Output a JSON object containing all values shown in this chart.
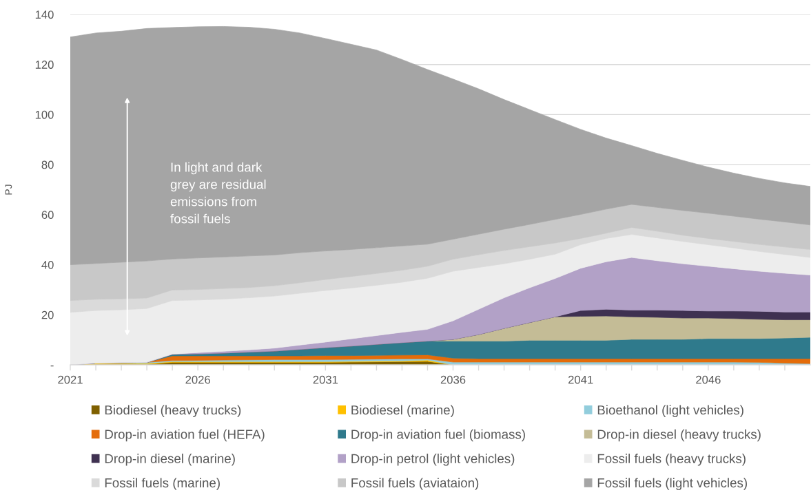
{
  "chart_data": {
    "type": "area",
    "stacked": true,
    "ylabel": "PJ",
    "x": [
      2021,
      2022,
      2023,
      2024,
      2025,
      2026,
      2027,
      2028,
      2029,
      2030,
      2031,
      2032,
      2033,
      2034,
      2035,
      2036,
      2037,
      2038,
      2039,
      2040,
      2041,
      2042,
      2043,
      2044,
      2045,
      2046,
      2047,
      2048,
      2049,
      2050
    ],
    "xlim": [
      2021,
      2050
    ],
    "xticks": [
      2021,
      {
        "value": 2022,
        "label": null
      },
      {
        "value": 2023,
        "label": null
      },
      {
        "value": 2024,
        "label": null
      },
      {
        "value": 2025,
        "label": null
      },
      2026,
      {
        "value": 2027,
        "label": null
      },
      {
        "value": 2028,
        "label": null
      },
      {
        "value": 2029,
        "label": null
      },
      {
        "value": 2030,
        "label": null
      },
      2031,
      {
        "value": 2032,
        "label": null
      },
      {
        "value": 2033,
        "label": null
      },
      {
        "value": 2034,
        "label": null
      },
      {
        "value": 2035,
        "label": null
      },
      2036,
      {
        "value": 2037,
        "label": null
      },
      {
        "value": 2038,
        "label": null
      },
      {
        "value": 2039,
        "label": null
      },
      {
        "value": 2040,
        "label": null
      },
      2041,
      {
        "value": 2042,
        "label": null
      },
      {
        "value": 2043,
        "label": null
      },
      {
        "value": 2044,
        "label": null
      },
      {
        "value": 2045,
        "label": null
      },
      2046,
      {
        "value": 2047,
        "label": null
      },
      {
        "value": 2048,
        "label": null
      },
      {
        "value": 2049,
        "label": null
      }
    ],
    "ylim": [
      0,
      140
    ],
    "yticks": [
      {
        "value": 0,
        "label": "-"
      },
      20,
      40,
      60,
      80,
      100,
      120,
      140
    ],
    "grid": "y",
    "legend": "bottom",
    "annotations": [
      "In light and dark\ngrey are residual\nemissions from\nfossil fuels"
    ],
    "series": [
      {
        "name": "Biodiesel (heavy trucks)",
        "color": "#7f6000",
        "values": [
          0,
          0.2,
          0.2,
          0.2,
          1.0,
          1.0,
          1.0,
          1.0,
          1.0,
          1.0,
          1.0,
          1.1,
          1.2,
          1.3,
          1.4,
          0,
          0,
          0,
          0,
          0,
          0,
          0,
          0,
          0,
          0,
          0,
          0,
          0,
          0,
          0
        ]
      },
      {
        "name": "Biodiesel (marine)",
        "color": "#ffc000",
        "values": [
          0,
          0.4,
          0.4,
          0.4,
          0.3,
          0.3,
          0.3,
          0.3,
          0.3,
          0.3,
          0.3,
          0.3,
          0.3,
          0.3,
          0.5,
          0,
          0,
          0,
          0,
          0,
          0,
          0,
          0,
          0,
          0,
          0,
          0,
          0,
          0,
          0
        ]
      },
      {
        "name": "Bioethanol (light vehicles)",
        "color": "#92cddc",
        "values": [
          0,
          0.1,
          0.3,
          0.4,
          0.4,
          0.5,
          0.6,
          0.7,
          0.8,
          0.8,
          0.8,
          0.8,
          0.8,
          0.8,
          0.5,
          1.1,
          1.1,
          1.1,
          1.1,
          1.1,
          1.1,
          1.1,
          1.1,
          1.1,
          1.1,
          1.1,
          1.1,
          1.0,
          0.7,
          0.5
        ]
      },
      {
        "name": "Drop-in aviation fuel (HEFA)",
        "color": "#e46c0a",
        "values": [
          0,
          0,
          0,
          0,
          1.9,
          1.8,
          1.7,
          1.6,
          1.5,
          1.5,
          1.6,
          1.5,
          1.5,
          1.5,
          1.6,
          1.6,
          1.4,
          1.4,
          1.4,
          1.4,
          1.4,
          1.4,
          1.4,
          1.4,
          1.4,
          1.4,
          1.4,
          1.5,
          1.8,
          2.0
        ]
      },
      {
        "name": "Drop-in aviation fuel (biomass)",
        "color": "#2f7a8c",
        "values": [
          0,
          0,
          0,
          0,
          0.6,
          0.8,
          1.1,
          1.5,
          1.9,
          2.6,
          3.2,
          3.8,
          4.4,
          5.0,
          5.5,
          6.8,
          7.0,
          7.0,
          7.3,
          7.3,
          7.3,
          7.3,
          7.7,
          7.7,
          7.7,
          8.0,
          8.0,
          8.0,
          8.2,
          8.5
        ]
      },
      {
        "name": "Drop-in diesel (heavy trucks)",
        "color": "#c4bc96",
        "values": [
          0,
          0,
          0,
          0,
          0,
          0,
          0,
          0,
          0,
          0,
          0,
          0,
          0,
          0,
          0,
          0.7,
          2.6,
          5.1,
          7.1,
          9.4,
          9.6,
          9.7,
          9.0,
          8.8,
          8.5,
          8.2,
          8.0,
          7.7,
          7.3,
          7.0
        ]
      },
      {
        "name": "Drop-in diesel (marine)",
        "color": "#3f3151",
        "values": [
          0,
          0,
          0,
          0,
          0,
          0,
          0,
          0,
          0,
          0,
          0,
          0,
          0,
          0,
          0,
          0,
          0,
          0,
          0,
          0,
          2.3,
          2.7,
          2.7,
          2.9,
          3.0,
          2.8,
          3.0,
          3.2,
          3.1,
          3.1
        ]
      },
      {
        "name": "Drop-in petrol (light vehicles)",
        "color": "#b2a1c7",
        "values": [
          0,
          0,
          0,
          0,
          0.1,
          0.5,
          0.7,
          0.9,
          1.2,
          1.7,
          2.2,
          2.9,
          3.5,
          4.1,
          4.7,
          7.4,
          10.1,
          12.2,
          13.9,
          15.3,
          16.9,
          19.0,
          21.0,
          19.7,
          18.7,
          17.9,
          16.9,
          16.0,
          15.5,
          14.8
        ]
      },
      {
        "name": "Fossil fuels (heavy trucks)",
        "color": "#ededed",
        "values": [
          21.0,
          21.0,
          21.1,
          21.5,
          21.4,
          21.0,
          20.9,
          20.8,
          20.8,
          20.7,
          20.6,
          20.3,
          20.1,
          20.0,
          20.4,
          19.8,
          16.7,
          13.6,
          11.4,
          9.7,
          9.4,
          9.3,
          9.2,
          9.1,
          8.9,
          8.6,
          8.3,
          7.9,
          7.5,
          7.0
        ]
      },
      {
        "name": "Fossil fuels (marine)",
        "color": "#dadada",
        "values": [
          4.7,
          4.5,
          4.4,
          4.2,
          4.2,
          4.2,
          4.2,
          4.1,
          4.1,
          4.2,
          4.4,
          4.6,
          4.7,
          4.8,
          4.8,
          4.8,
          5.1,
          5.3,
          5.0,
          4.5,
          2.5,
          2.1,
          2.8,
          2.7,
          2.5,
          2.5,
          2.6,
          2.8,
          3.0,
          3.2
        ]
      },
      {
        "name": "Fossil fuels (aviataion)",
        "color": "#c8c8c8",
        "values": [
          14.3,
          14.3,
          14.6,
          14.8,
          12.4,
          12.6,
          12.6,
          12.6,
          12.3,
          12.0,
          11.4,
          10.8,
          10.3,
          9.7,
          8.8,
          8.0,
          8.2,
          8.5,
          8.9,
          9.4,
          9.6,
          9.6,
          9.2,
          9.5,
          9.9,
          10.1,
          10.1,
          10.1,
          10.0,
          9.8
        ]
      },
      {
        "name": "Fossil fuels (light vehicles)",
        "color": "#a5a5a5",
        "values": [
          91.0,
          92.1,
          92.3,
          92.9,
          92.5,
          92.4,
          92.1,
          91.4,
          90.2,
          87.8,
          84.9,
          82.0,
          79.0,
          74.5,
          69.8,
          64.0,
          58.1,
          51.8,
          45.9,
          39.9,
          34.0,
          28.4,
          23.5,
          21.6,
          20.0,
          18.4,
          17.2,
          16.3,
          15.6,
          15.4
        ]
      }
    ]
  }
}
